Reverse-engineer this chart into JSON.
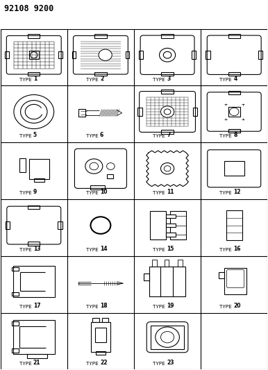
{
  "title": "92108 9200",
  "bg_color": "#ffffff",
  "line_color": "#000000",
  "num_cols": 4,
  "num_rows": 6,
  "cell_labels": [
    "TYPE 1",
    "TYPE 2",
    "TYPE 3",
    "TYPE 4",
    "TYPE 5",
    "TYPE 6",
    "TYPE 7",
    "TYPE 8",
    "TYPE 9",
    "TYPE 10",
    "TYPE 11",
    "TYPE 12",
    "TYPE 13",
    "TYPE 14",
    "TYPE 15",
    "TYPE 16",
    "TYPE 17",
    "TYPE 18",
    "TYPE 19",
    "TYPE 20",
    "TYPE 21",
    "TYPE 22",
    "TYPE 23",
    ""
  ]
}
